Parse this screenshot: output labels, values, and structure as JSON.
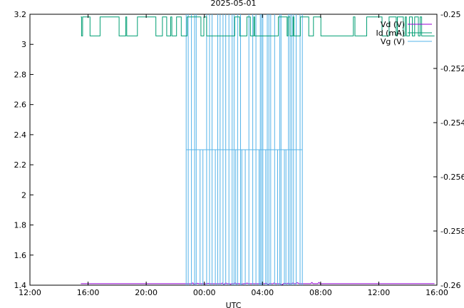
{
  "chart_data": {
    "type": "line",
    "title": "2025-05-01",
    "xlabel": "UTC",
    "ylabel": "",
    "y2label": "",
    "x_ticks": [
      "12:00",
      "16:00",
      "20:00",
      "00:00",
      "04:00",
      "08:00",
      "12:00",
      "16:00"
    ],
    "xlim": [
      "2025-04-30T12:00",
      "2025-05-01T16:00"
    ],
    "ylim": [
      1.4,
      3.2
    ],
    "y_ticks": [
      "1.4",
      "1.6",
      "1.8",
      "2",
      "2.2",
      "2.4",
      "2.6",
      "2.8",
      "3",
      "3.2"
    ],
    "y2lim": [
      -0.26,
      -0.25
    ],
    "y2_ticks": [
      "-0.26",
      "-0.258",
      "-0.256",
      "-0.254",
      "-0.252",
      "-0.25"
    ],
    "grid": false,
    "legend_position": "top-right",
    "series": [
      {
        "name": "Vd (V)",
        "axis": "y",
        "color": "#9400d3",
        "data_start": "2025-04-30T15:30",
        "data_end": "2025-05-01T15:50",
        "values_description_level": 1.41
      },
      {
        "name": "Id (mA)",
        "axis": "y2",
        "color": "#009e73",
        "data_start": "2025-04-30T15:30",
        "data_end": "2025-05-01T15:50",
        "levels": [
          -0.2501,
          -0.2508
        ]
      },
      {
        "name": "Vg (V)",
        "axis": "y",
        "color": "#56b4e9",
        "data_start": "2025-04-30T22:45",
        "data_end": "2025-05-01T06:45",
        "levels": [
          1.4,
          2.3,
          3.2
        ]
      }
    ]
  }
}
